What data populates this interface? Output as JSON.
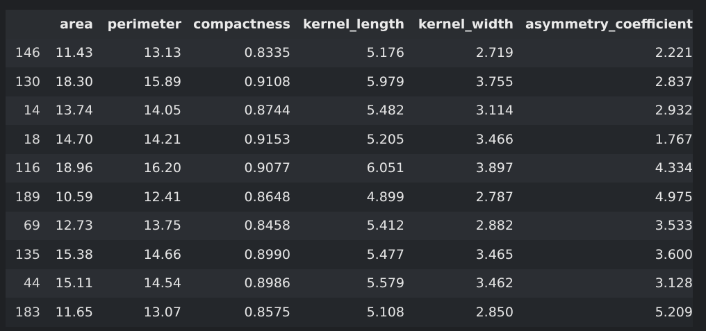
{
  "table": {
    "columns": [
      "",
      "area",
      "perimeter",
      "compactness",
      "kernel_length",
      "kernel_width",
      "asymmetry_coefficient"
    ],
    "rows": [
      [
        "146",
        "11.43",
        "13.13",
        "0.8335",
        "5.176",
        "2.719",
        "2.221"
      ],
      [
        "130",
        "18.30",
        "15.89",
        "0.9108",
        "5.979",
        "3.755",
        "2.837"
      ],
      [
        "14",
        "13.74",
        "14.05",
        "0.8744",
        "5.482",
        "3.114",
        "2.932"
      ],
      [
        "18",
        "14.70",
        "14.21",
        "0.9153",
        "5.205",
        "3.466",
        "1.767"
      ],
      [
        "116",
        "18.96",
        "16.20",
        "0.9077",
        "6.051",
        "3.897",
        "4.334"
      ],
      [
        "189",
        "10.59",
        "12.41",
        "0.8648",
        "4.899",
        "2.787",
        "4.975"
      ],
      [
        "69",
        "12.73",
        "13.75",
        "0.8458",
        "5.412",
        "2.882",
        "3.533"
      ],
      [
        "135",
        "15.38",
        "14.66",
        "0.8990",
        "5.477",
        "3.465",
        "3.600"
      ],
      [
        "44",
        "15.11",
        "14.54",
        "0.8986",
        "5.579",
        "3.462",
        "3.128"
      ],
      [
        "183",
        "11.65",
        "13.07",
        "0.8575",
        "5.108",
        "2.850",
        "5.209"
      ]
    ]
  }
}
